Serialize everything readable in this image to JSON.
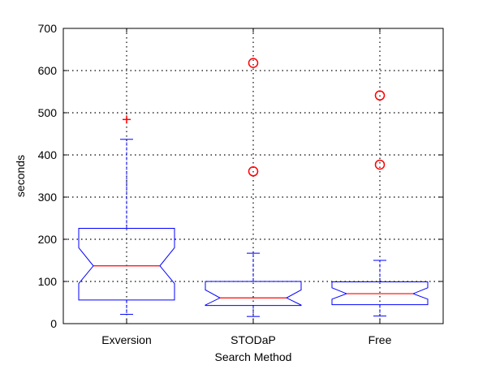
{
  "chart_data": {
    "type": "boxplot",
    "title": "",
    "xlabel": "Search Method",
    "ylabel": "seconds",
    "ylim": [
      0,
      700
    ],
    "yticks": [
      0,
      100,
      200,
      300,
      400,
      500,
      600,
      700
    ],
    "grid": true,
    "notched": true,
    "categories": [
      "Exversion",
      "STODaP",
      "Free"
    ],
    "boxes": [
      {
        "label": "Exversion",
        "whisker_low": 22,
        "q1": 56,
        "notch_low": 95,
        "median": 137,
        "notch_high": 180,
        "q3": 226,
        "whisker_high": 437,
        "outliers": [
          {
            "value": 484,
            "marker": "plus"
          }
        ]
      },
      {
        "label": "STODaP",
        "whisker_low": 17,
        "q1": 43,
        "notch_low": 44,
        "median": 61,
        "notch_high": 80,
        "q3": 100,
        "whisker_high": 167,
        "outliers": [
          {
            "value": 361,
            "marker": "circle"
          },
          {
            "value": 618,
            "marker": "circle"
          }
        ]
      },
      {
        "label": "Free",
        "whisker_low": 18,
        "q1": 45,
        "notch_low": 58,
        "median": 71,
        "notch_high": 85,
        "q3": 99,
        "whisker_high": 150,
        "outliers": [
          {
            "value": 377,
            "marker": "circle"
          },
          {
            "value": 541,
            "marker": "circle"
          }
        ]
      }
    ],
    "colors": {
      "box": "#0000ff",
      "median": "#ff0000",
      "outlier": "#ff0000",
      "grid": "#000000",
      "axis": "#000000"
    }
  }
}
